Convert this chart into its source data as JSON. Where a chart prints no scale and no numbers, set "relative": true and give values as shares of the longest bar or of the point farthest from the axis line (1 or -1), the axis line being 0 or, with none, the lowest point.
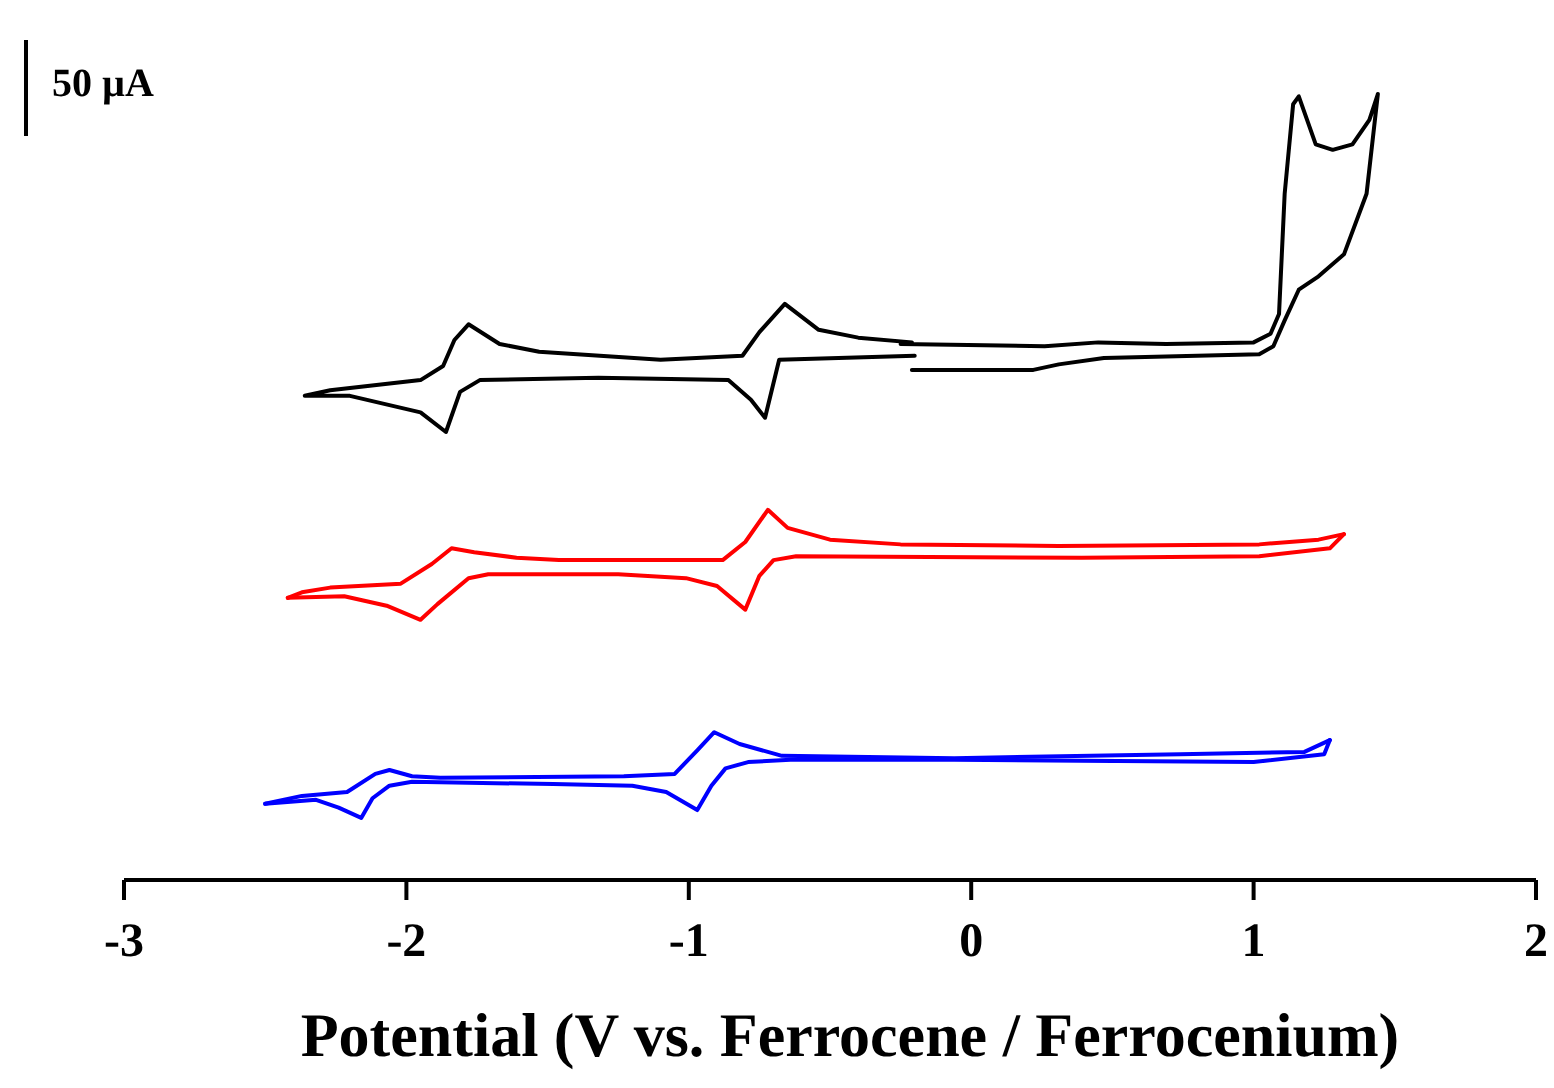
{
  "chart_data": {
    "type": "line",
    "relative": true,
    "xlabel": "Potential (V vs. Ferrocene / Ferrocenium)",
    "annotations": [
      "50 µA"
    ],
    "xlim": [
      -3,
      2
    ],
    "xticks": [
      -3,
      -2,
      -1,
      0,
      1,
      2
    ],
    "grid": false,
    "marker": "none",
    "line_style": "solid",
    "series": [
      {
        "color": "#000000",
        "x": [
          -0.2,
          -0.68,
          -0.73,
          -0.78,
          -0.86,
          -1.32,
          -1.74,
          -1.81,
          -1.86,
          -1.95,
          -2.2,
          -2.36,
          -2.27,
          -1.95,
          -1.87,
          -1.83,
          -1.78,
          -1.67,
          -1.53,
          -1.1,
          -0.81,
          -0.75,
          -0.66,
          -0.54,
          -0.4,
          -0.21,
          null,
          -0.21,
          0.22,
          0.31,
          0.47,
          1.02,
          1.07,
          1.11,
          1.16,
          1.23,
          1.32,
          1.4,
          1.44,
          1.41,
          1.35,
          1.28,
          1.22,
          1.16,
          1.14,
          1.11,
          1.09,
          1.06,
          1.0,
          0.69,
          0.45,
          0.26,
          -0.25
        ],
        "values": [
          0.667,
          0.662,
          0.588,
          0.611,
          0.636,
          0.639,
          0.636,
          0.621,
          0.57,
          0.595,
          0.616,
          0.616,
          0.623,
          0.636,
          0.654,
          0.687,
          0.707,
          0.682,
          0.672,
          0.662,
          0.667,
          0.697,
          0.733,
          0.7,
          0.69,
          0.684,
          null,
          0.649,
          0.649,
          0.656,
          0.664,
          0.669,
          0.679,
          0.712,
          0.751,
          0.768,
          0.796,
          0.873,
          1.0,
          0.967,
          0.936,
          0.929,
          0.936,
          0.997,
          0.987,
          0.873,
          0.72,
          0.695,
          0.684,
          0.682,
          0.684,
          0.679,
          0.682
        ]
      },
      {
        "color": "#ff0000",
        "x": [
          1.32,
          1.27,
          1.02,
          0.39,
          -0.62,
          -0.7,
          -0.75,
          -0.8,
          -0.9,
          -1.01,
          -1.25,
          -1.71,
          -1.78,
          -1.89,
          -1.95,
          -2.07,
          -2.22,
          -2.42
        ],
        "values": [
          0.44,
          0.422,
          0.412,
          0.41,
          0.412,
          0.407,
          0.387,
          0.344,
          0.374,
          0.384,
          0.389,
          0.389,
          0.384,
          0.351,
          0.331,
          0.349,
          0.361,
          0.359
        ]
      },
      {
        "color": "#ff0000",
        "x": [
          -2.42,
          -2.37,
          -2.27,
          -2.02,
          -1.91,
          -1.84,
          -1.76,
          -1.61,
          -1.46,
          -0.88,
          -0.8,
          -0.72,
          -0.65,
          -0.5,
          -0.25,
          0.31,
          1.02,
          1.23,
          1.32
        ],
        "values": [
          0.359,
          0.366,
          0.372,
          0.377,
          0.402,
          0.422,
          0.417,
          0.41,
          0.407,
          0.407,
          0.43,
          0.471,
          0.448,
          0.433,
          0.427,
          0.425,
          0.427,
          0.433,
          0.44
        ]
      },
      {
        "color": "#0000ff",
        "x": [
          1.27,
          1.25,
          1.0,
          -0.06,
          -0.64,
          -0.79,
          -0.87,
          -0.92,
          -0.97,
          -1.08,
          -1.2,
          -1.48,
          -1.98,
          -2.06,
          -2.12,
          -2.16,
          -2.24,
          -2.32,
          -2.5
        ],
        "values": [
          0.178,
          0.16,
          0.15,
          0.153,
          0.153,
          0.15,
          0.142,
          0.12,
          0.089,
          0.112,
          0.12,
          0.122,
          0.125,
          0.12,
          0.104,
          0.079,
          0.092,
          0.102,
          0.097
        ]
      },
      {
        "color": "#0000ff",
        "x": [
          -2.5,
          -2.37,
          -2.21,
          -2.11,
          -2.06,
          -1.98,
          -1.88,
          -1.23,
          -1.05,
          -0.97,
          -0.91,
          -0.82,
          -0.67,
          -0.06,
          0.74,
          1.18,
          1.27
        ],
        "values": [
          0.097,
          0.107,
          0.112,
          0.135,
          0.14,
          0.132,
          0.13,
          0.132,
          0.135,
          0.165,
          0.188,
          0.173,
          0.158,
          0.155,
          0.16,
          0.163,
          0.178
        ]
      }
    ]
  }
}
